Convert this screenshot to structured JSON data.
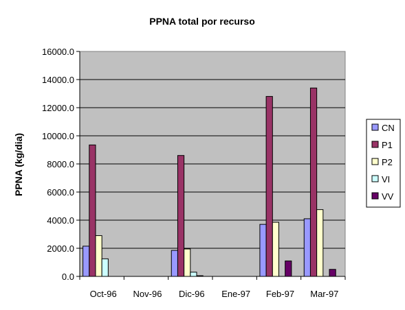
{
  "chart_data": {
    "type": "bar",
    "title": "PPNA total por recurso",
    "xlabel": "",
    "ylabel": "PPNA (kg/dia)",
    "categories": [
      "Oct-96",
      "Nov-96",
      "Dic-96",
      "Ene-97",
      "Feb-97",
      "Mar-97"
    ],
    "yticks": [
      "0.0",
      "2000.0",
      "4000.0",
      "6000.0",
      "8000.0",
      "10000.0",
      "12000.0",
      "14000.0",
      "16000.0"
    ],
    "ylim": [
      0,
      16000
    ],
    "grid": true,
    "legend_position": "right",
    "plot_background": "#c0c0c0",
    "series": [
      {
        "name": "CN",
        "color": "#9999ff",
        "values": [
          2150,
          0,
          1850,
          0,
          3700,
          4100
        ]
      },
      {
        "name": "P1",
        "color": "#993366",
        "values": [
          9350,
          0,
          8600,
          0,
          12800,
          13400
        ]
      },
      {
        "name": "P2",
        "color": "#ffffcc",
        "values": [
          2900,
          0,
          1950,
          0,
          3850,
          4750
        ]
      },
      {
        "name": "VI",
        "color": "#ccffff",
        "values": [
          1250,
          0,
          300,
          0,
          0,
          0
        ]
      },
      {
        "name": "VV",
        "color": "#660066",
        "values": [
          0,
          0,
          50,
          0,
          1100,
          500
        ]
      }
    ]
  }
}
